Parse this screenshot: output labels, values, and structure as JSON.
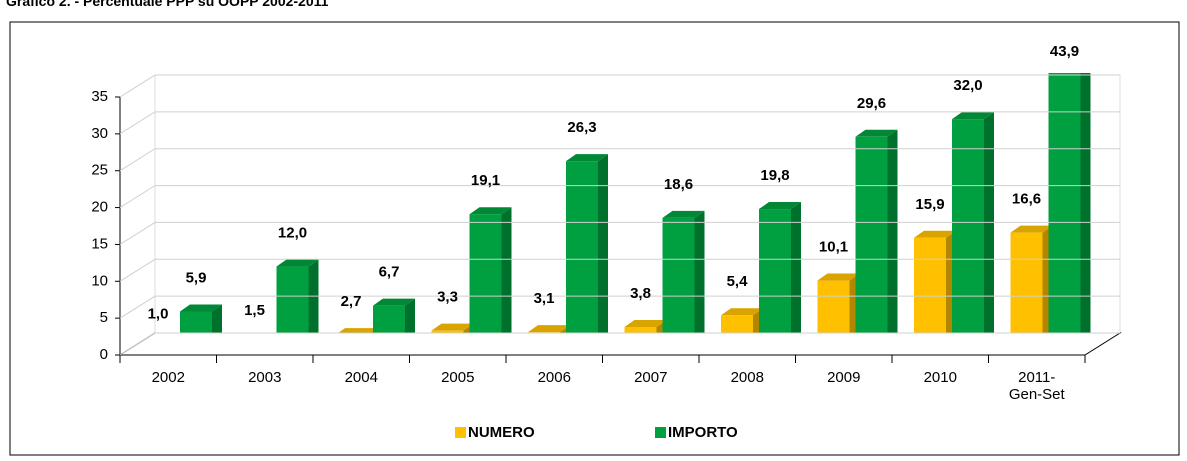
{
  "chart_data": {
    "type": "bar3d",
    "title": "Grafico 2. - Percentuale PPP su OOPP 2002-2011",
    "categories": [
      "2002",
      "2003",
      "2004",
      "2005",
      "2006",
      "2007",
      "2008",
      "2009",
      "2010",
      "2011-\nGen-Set"
    ],
    "series": [
      {
        "name": "NUMERO",
        "color": "#ffc000",
        "values": [
          1.0,
          1.5,
          2.7,
          3.3,
          3.1,
          3.8,
          5.4,
          10.1,
          15.9,
          16.6
        ],
        "value_labels": [
          "1,0",
          "1,5",
          "2,7",
          "3,3",
          "3,1",
          "3,8",
          "5,4",
          "10,1",
          "15,9",
          "16,6"
        ]
      },
      {
        "name": "IMPORTO",
        "color": "#00a040",
        "values": [
          5.9,
          12.0,
          6.7,
          19.1,
          26.3,
          18.6,
          19.8,
          29.6,
          32.0,
          43.9
        ],
        "value_labels": [
          "5,9",
          "12,0",
          "6,7",
          "19,1",
          "26,3",
          "18,6",
          "19,8",
          "29,6",
          "32,0",
          "43,9"
        ]
      }
    ],
    "ylim": [
      0,
      35
    ],
    "yticks": [
      0,
      5,
      10,
      15,
      20,
      25,
      30,
      35
    ],
    "grid": true
  }
}
